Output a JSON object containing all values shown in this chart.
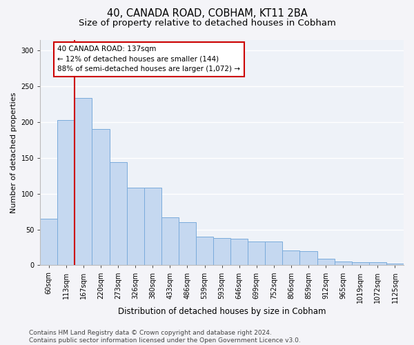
{
  "title": "40, CANADA ROAD, COBHAM, KT11 2BA",
  "subtitle": "Size of property relative to detached houses in Cobham",
  "xlabel": "Distribution of detached houses by size in Cobham",
  "ylabel": "Number of detached properties",
  "bar_labels": [
    "60sqm",
    "113sqm",
    "167sqm",
    "220sqm",
    "273sqm",
    "326sqm",
    "380sqm",
    "433sqm",
    "486sqm",
    "539sqm",
    "593sqm",
    "646sqm",
    "699sqm",
    "752sqm",
    "806sqm",
    "859sqm",
    "912sqm",
    "965sqm",
    "1019sqm",
    "1072sqm",
    "1125sqm"
  ],
  "bar_values": [
    65,
    203,
    234,
    190,
    144,
    108,
    108,
    67,
    60,
    40,
    38,
    37,
    33,
    33,
    21,
    20,
    9,
    5,
    4,
    4,
    2
  ],
  "bar_color": "#c5d8f0",
  "bar_edge_color": "#7aabdb",
  "vline_color": "#cc0000",
  "annotation_text": "40 CANADA ROAD: 137sqm\n← 12% of detached houses are smaller (144)\n88% of semi-detached houses are larger (1,072) →",
  "annotation_box_color": "#ffffff",
  "annotation_box_edge": "#cc0000",
  "ylim": [
    0,
    315
  ],
  "yticks": [
    0,
    50,
    100,
    150,
    200,
    250,
    300
  ],
  "footer_text": "Contains HM Land Registry data © Crown copyright and database right 2024.\nContains public sector information licensed under the Open Government Licence v3.0.",
  "fig_bg_color": "#f4f4f8",
  "plot_bg_color": "#eef2f8",
  "grid_color": "#ffffff",
  "title_fontsize": 10.5,
  "subtitle_fontsize": 9.5,
  "xlabel_fontsize": 8.5,
  "ylabel_fontsize": 8,
  "tick_fontsize": 7,
  "footer_fontsize": 6.5,
  "annotation_fontsize": 7.5
}
